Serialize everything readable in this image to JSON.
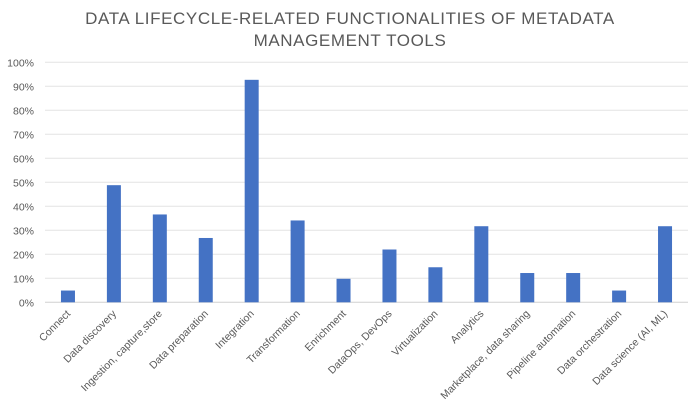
{
  "chart_data": {
    "type": "bar",
    "title_lines": [
      "DATA LIFECYCLE-RELATED FUNCTIONALITIES OF METADATA",
      "MANAGEMENT TOOLS"
    ],
    "categories": [
      "Connect",
      "Data discovery",
      "Ingestion, capture,store",
      "Data preparation",
      "Integration",
      "Transformation",
      "Enrichment",
      "DataOps, DevOps",
      "Virtualization",
      "Analytics",
      "Marketplace, data sharing",
      "Pipeline automation",
      "Data orchestration",
      "Data science (AI, ML)"
    ],
    "values": [
      4.9,
      48.8,
      36.6,
      26.8,
      92.7,
      34.1,
      9.8,
      22.0,
      14.6,
      31.7,
      12.2,
      12.2,
      4.9,
      31.7
    ],
    "unit": "%",
    "ylim": [
      0,
      100
    ],
    "yticks": [
      "0%",
      "10%",
      "20%",
      "30%",
      "40%",
      "50%",
      "60%",
      "70%",
      "80%",
      "90%",
      "100%"
    ],
    "grid": true,
    "legend": "none",
    "bar_color": "#4472C4"
  }
}
